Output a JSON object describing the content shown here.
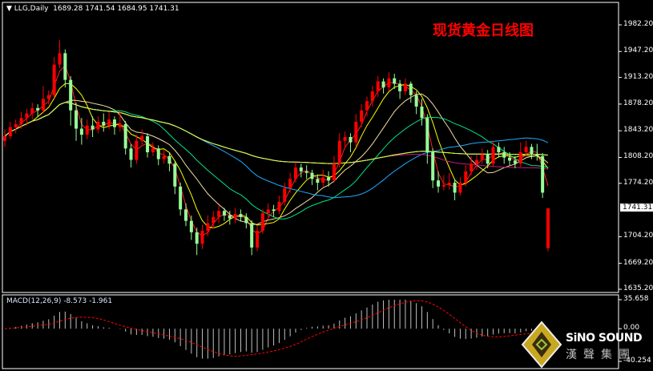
{
  "header": {
    "symbol": "LLG,Daily",
    "ohlc_text": "1689.28 1741.54 1684.95 1741.31",
    "menu_icon": "triangle-down-icon"
  },
  "title": "现货黄金日线图",
  "price_axis": {
    "ticks": [
      "1982.20",
      "1947.20",
      "1913.20",
      "1878.20",
      "1843.20",
      "1808.20",
      "1774.20",
      "1704.20",
      "1669.20",
      "1635.20"
    ],
    "current": "1741.31"
  },
  "macd": {
    "label": "MACD(12,26,9) -8.573 -1.961",
    "ticks": [
      "35.658",
      "0.00",
      "-40.254"
    ],
    "histogram_color": "#c0c0c0",
    "signal_color": "#ff0000"
  },
  "logo": {
    "brand": "SiNO SOUND",
    "brand_cn": "漢聲集團"
  },
  "chart_data": {
    "type": "candlestick",
    "ylim": [
      1635.2,
      1982.2
    ],
    "macd_ylim": [
      -40.254,
      35.658
    ],
    "up_color": "#ff0000",
    "down_color": "#98fb98",
    "ma_colors": [
      "#ff2020",
      "#ffff00",
      "#f5dfa0",
      "#00e58a",
      "#1eaaff",
      "#c71585",
      "#ffffff",
      "#ccff33"
    ],
    "ohlc": [
      [
        1830,
        1845,
        1822,
        1836
      ],
      [
        1836,
        1855,
        1832,
        1848
      ],
      [
        1848,
        1858,
        1840,
        1852
      ],
      [
        1852,
        1868,
        1846,
        1860
      ],
      [
        1860,
        1872,
        1850,
        1866
      ],
      [
        1866,
        1880,
        1858,
        1873
      ],
      [
        1873,
        1878,
        1862,
        1870
      ],
      [
        1870,
        1902,
        1866,
        1885
      ],
      [
        1885,
        1896,
        1878,
        1890
      ],
      [
        1890,
        1940,
        1886,
        1930
      ],
      [
        1930,
        1962,
        1925,
        1945
      ],
      [
        1945,
        1950,
        1900,
        1910
      ],
      [
        1910,
        1915,
        1850,
        1870
      ],
      [
        1870,
        1880,
        1830,
        1846
      ],
      [
        1846,
        1860,
        1825,
        1838
      ],
      [
        1838,
        1858,
        1832,
        1850
      ],
      [
        1850,
        1862,
        1835,
        1845
      ],
      [
        1845,
        1862,
        1840,
        1855
      ],
      [
        1855,
        1866,
        1842,
        1850
      ],
      [
        1850,
        1868,
        1845,
        1858
      ],
      [
        1858,
        1862,
        1838,
        1848
      ],
      [
        1848,
        1870,
        1842,
        1852
      ],
      [
        1852,
        1856,
        1812,
        1820
      ],
      [
        1820,
        1826,
        1795,
        1805
      ],
      [
        1805,
        1838,
        1800,
        1830
      ],
      [
        1830,
        1845,
        1825,
        1836
      ],
      [
        1836,
        1840,
        1808,
        1815
      ],
      [
        1815,
        1828,
        1810,
        1820
      ],
      [
        1820,
        1824,
        1798,
        1806
      ],
      [
        1806,
        1818,
        1800,
        1810
      ],
      [
        1810,
        1815,
        1790,
        1800
      ],
      [
        1800,
        1804,
        1760,
        1770
      ],
      [
        1770,
        1775,
        1732,
        1740
      ],
      [
        1740,
        1748,
        1718,
        1725
      ],
      [
        1725,
        1732,
        1700,
        1710
      ],
      [
        1710,
        1716,
        1680,
        1695
      ],
      [
        1695,
        1720,
        1688,
        1712
      ],
      [
        1712,
        1732,
        1705,
        1722
      ],
      [
        1722,
        1738,
        1715,
        1730
      ],
      [
        1730,
        1745,
        1722,
        1738
      ],
      [
        1738,
        1742,
        1725,
        1732
      ],
      [
        1732,
        1738,
        1720,
        1728
      ],
      [
        1728,
        1742,
        1722,
        1734
      ],
      [
        1734,
        1740,
        1724,
        1730
      ],
      [
        1730,
        1735,
        1715,
        1722
      ],
      [
        1722,
        1726,
        1680,
        1690
      ],
      [
        1690,
        1718,
        1685,
        1712
      ],
      [
        1712,
        1740,
        1708,
        1735
      ],
      [
        1735,
        1748,
        1728,
        1740
      ],
      [
        1740,
        1746,
        1730,
        1738
      ],
      [
        1738,
        1758,
        1734,
        1750
      ],
      [
        1750,
        1775,
        1745,
        1768
      ],
      [
        1768,
        1788,
        1762,
        1780
      ],
      [
        1780,
        1802,
        1775,
        1795
      ],
      [
        1795,
        1800,
        1782,
        1790
      ],
      [
        1790,
        1798,
        1780,
        1788
      ],
      [
        1788,
        1792,
        1772,
        1780
      ],
      [
        1780,
        1786,
        1765,
        1775
      ],
      [
        1775,
        1792,
        1770,
        1782
      ],
      [
        1782,
        1790,
        1770,
        1778
      ],
      [
        1778,
        1810,
        1775,
        1800
      ],
      [
        1800,
        1840,
        1795,
        1830
      ],
      [
        1830,
        1842,
        1820,
        1835
      ],
      [
        1835,
        1840,
        1815,
        1828
      ],
      [
        1828,
        1865,
        1822,
        1855
      ],
      [
        1855,
        1878,
        1848,
        1870
      ],
      [
        1870,
        1888,
        1862,
        1882
      ],
      [
        1882,
        1902,
        1875,
        1895
      ],
      [
        1895,
        1915,
        1888,
        1908
      ],
      [
        1908,
        1912,
        1892,
        1900
      ],
      [
        1900,
        1920,
        1895,
        1912
      ],
      [
        1912,
        1918,
        1898,
        1905
      ],
      [
        1905,
        1910,
        1885,
        1895
      ],
      [
        1895,
        1912,
        1890,
        1905
      ],
      [
        1905,
        1908,
        1880,
        1890
      ],
      [
        1890,
        1895,
        1865,
        1875
      ],
      [
        1875,
        1885,
        1850,
        1860
      ],
      [
        1860,
        1865,
        1800,
        1815
      ],
      [
        1815,
        1820,
        1768,
        1778
      ],
      [
        1778,
        1790,
        1762,
        1770
      ],
      [
        1770,
        1785,
        1765,
        1772
      ],
      [
        1772,
        1788,
        1766,
        1775
      ],
      [
        1775,
        1780,
        1752,
        1762
      ],
      [
        1762,
        1782,
        1758,
        1775
      ],
      [
        1775,
        1798,
        1770,
        1790
      ],
      [
        1790,
        1810,
        1785,
        1800
      ],
      [
        1800,
        1812,
        1792,
        1805
      ],
      [
        1805,
        1820,
        1800,
        1812
      ],
      [
        1812,
        1818,
        1794,
        1800
      ],
      [
        1800,
        1830,
        1796,
        1822
      ],
      [
        1822,
        1828,
        1808,
        1815
      ],
      [
        1815,
        1822,
        1800,
        1808
      ],
      [
        1808,
        1815,
        1798,
        1804
      ],
      [
        1804,
        1810,
        1794,
        1800
      ],
      [
        1800,
        1828,
        1796,
        1815
      ],
      [
        1815,
        1830,
        1810,
        1822
      ],
      [
        1822,
        1826,
        1806,
        1812
      ],
      [
        1812,
        1826,
        1804,
        1810
      ],
      [
        1810,
        1814,
        1755,
        1762
      ],
      [
        1689.28,
        1741.54,
        1684.95,
        1741.31
      ]
    ]
  }
}
